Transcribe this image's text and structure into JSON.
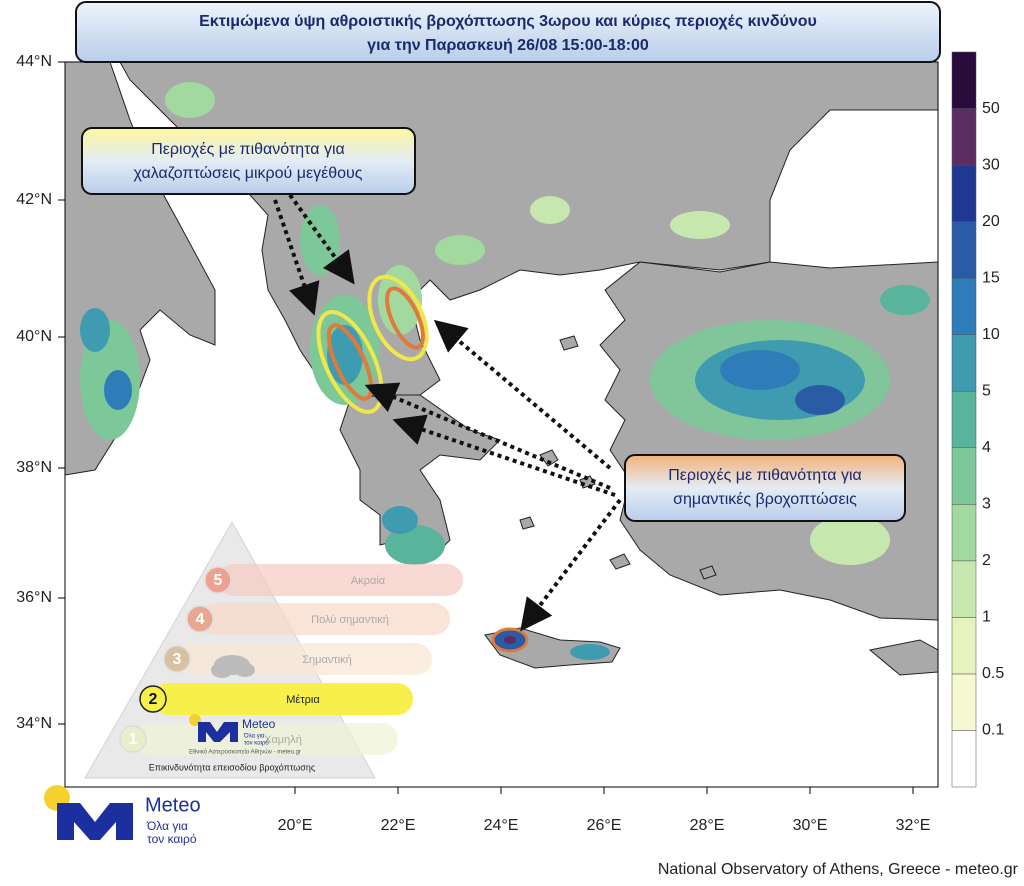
{
  "title": {
    "lines": [
      "Εκτιμώμενα ύψη αθροιστικής βροχόπτωσης 3ωρου και κύριες περιοχές κινδύνου",
      "για την Παρασκευή 26/08 15:00-18:00"
    ]
  },
  "annotations": [
    {
      "lines": [
        "Περιοχές με πιθανότητα για",
        "χαλαζοπτώσεις μικρού μεγέθους"
      ]
    },
    {
      "lines": [
        "Περιοχές με πιθανότητα για",
        "σημαντικές βροχοπτώσεις"
      ]
    }
  ],
  "lat_labels": [
    "44°N",
    "42°N",
    "40°N",
    "38°N",
    "36°N",
    "34°N"
  ],
  "lon_labels": [
    "20°E",
    "22°E",
    "24°E",
    "26°E",
    "28°E",
    "30°E",
    "32°E"
  ],
  "colorbar": {
    "labels": [
      "0.1",
      "0.5",
      "1",
      "2",
      "3",
      "4",
      "5",
      "10",
      "15",
      "20",
      "30",
      "50"
    ],
    "colors": [
      "#ffffff",
      "#f5f8d0",
      "#e6f3bc",
      "#c6e8ae",
      "#a2d99e",
      "#7cc898",
      "#58b49a",
      "#3f9bb0",
      "#2f7db8",
      "#2a5ca6",
      "#1f3891",
      "#5b2d63",
      "#2a0b3d"
    ]
  },
  "risk_legend": {
    "levels": [
      {
        "number": "5",
        "label": "Ακραία"
      },
      {
        "number": "4",
        "label": "Πολύ σημαντική"
      },
      {
        "number": "3",
        "label": "Σημαντική"
      },
      {
        "number": "2",
        "label": "Μέτρια"
      },
      {
        "number": "1",
        "label": "Χαμηλή"
      }
    ],
    "caption": "Επικινδυνότητα επεισοδίου βροχόπτωσης",
    "mini_logo": {
      "name": "Meteo",
      "slogan_1": "Όλα για",
      "slogan_2": "τον καιρό",
      "org": "Εθνικό Αστεροσκοπείο Αθηνών - meteo.gr"
    }
  },
  "logo": {
    "name": "Meteo",
    "slogan_1": "Όλα για",
    "slogan_2": "τον καιρό"
  },
  "footer": "National Observatory of Athens, Greece - meteo.gr"
}
